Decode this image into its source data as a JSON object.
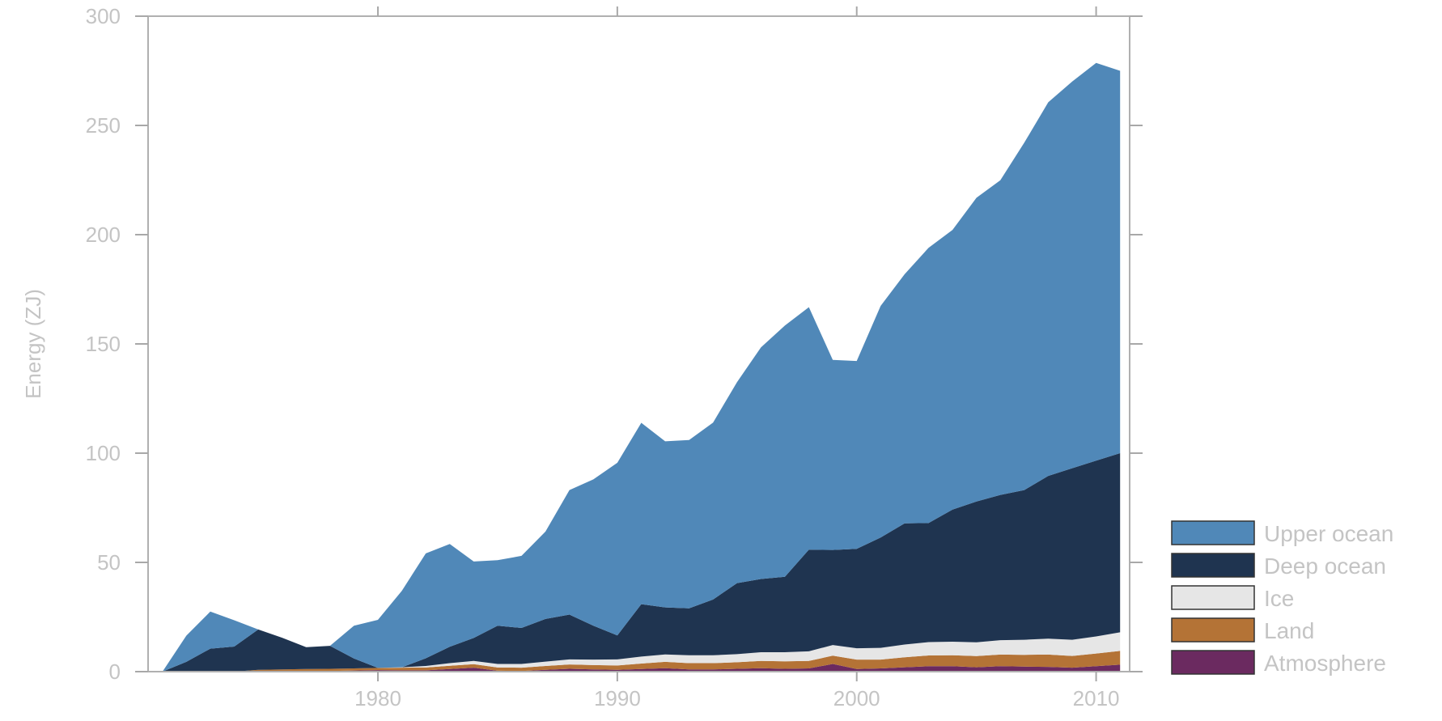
{
  "chart_data": {
    "type": "area",
    "stacked": true,
    "title": "",
    "xlabel": "",
    "ylabel": "Energy (ZJ)",
    "xlim": [
      1970.4,
      2011.4
    ],
    "ylim": [
      0,
      300
    ],
    "xticks": [
      1980,
      1990,
      2000,
      2010
    ],
    "yticks": [
      0,
      50,
      100,
      150,
      200,
      250,
      300
    ],
    "grid": false,
    "legend_position": "bottom-right",
    "x": [
      1971,
      1972,
      1973,
      1974,
      1975,
      1976,
      1977,
      1978,
      1979,
      1980,
      1981,
      1982,
      1983,
      1984,
      1985,
      1986,
      1987,
      1988,
      1989,
      1990,
      1991,
      1992,
      1993,
      1994,
      1995,
      1996,
      1997,
      1998,
      1999,
      2000,
      2001,
      2002,
      2003,
      2004,
      2005,
      2006,
      2007,
      2008,
      2009,
      2010,
      2011
    ],
    "series": [
      {
        "name": "Atmosphere",
        "color": "#6b2a60",
        "values": [
          0,
          0,
          0,
          0,
          0.2,
          0.3,
          0.3,
          0.3,
          0.5,
          0.7,
          0.6,
          0.6,
          1.2,
          1.8,
          0.4,
          0.3,
          0.8,
          1.3,
          1.0,
          0.8,
          1.2,
          1.6,
          1.0,
          1.0,
          1.3,
          1.6,
          1.3,
          1.5,
          3.5,
          1.2,
          1.5,
          2.0,
          2.5,
          2.5,
          2.0,
          2.5,
          2.3,
          2.2,
          1.8,
          2.5,
          3.2
        ]
      },
      {
        "name": "Land",
        "color": "#b47336",
        "values": [
          0,
          0,
          0,
          0,
          0.6,
          0.7,
          0.9,
          1.0,
          1.0,
          1.0,
          1.2,
          1.3,
          1.5,
          1.6,
          1.5,
          1.5,
          1.8,
          2.0,
          2.0,
          2.0,
          2.5,
          2.9,
          2.9,
          2.9,
          3.0,
          3.3,
          3.4,
          3.4,
          3.8,
          4.3,
          4.0,
          4.6,
          4.9,
          5.0,
          5.1,
          5.3,
          5.4,
          5.6,
          5.4,
          5.8,
          6.3
        ]
      },
      {
        "name": "Ice",
        "color": "#e6e6e6",
        "values": [
          0,
          0,
          0,
          0,
          0,
          0,
          0,
          0,
          0,
          0,
          0.2,
          0.7,
          1.2,
          1.5,
          1.6,
          1.7,
          2.0,
          2.3,
          2.5,
          2.8,
          3.2,
          3.4,
          3.6,
          3.6,
          3.7,
          4.0,
          4.2,
          4.4,
          4.9,
          5.2,
          5.4,
          5.8,
          6.1,
          6.2,
          6.3,
          6.6,
          6.9,
          7.3,
          7.4,
          7.8,
          8.5
        ]
      },
      {
        "name": "Deep ocean",
        "color": "#1f3450",
        "values": [
          0,
          4.5,
          10.5,
          11.5,
          18.5,
          14.5,
          10.0,
          10.5,
          4.5,
          0,
          0,
          3.5,
          7.5,
          10.5,
          17.5,
          16.5,
          19.5,
          20.5,
          15.5,
          11.0,
          24.0,
          21.5,
          21.5,
          25.5,
          32.5,
          33.5,
          34.5,
          46.5,
          43.5,
          45.5,
          50.5,
          55.5,
          54.5,
          60.5,
          64.5,
          66.5,
          68.5,
          74.5,
          78.5,
          80.5,
          82.0
        ]
      },
      {
        "name": "Upper ocean",
        "color": "#5088b8",
        "values": [
          0,
          12,
          17,
          12,
          0,
          0,
          0,
          0,
          15,
          22,
          35,
          48,
          47,
          35,
          30,
          33,
          40,
          57,
          67,
          79,
          83,
          76,
          77,
          81,
          92,
          106,
          115,
          111,
          87,
          86,
          106,
          114,
          126,
          128,
          139,
          144,
          159,
          171,
          177,
          182,
          175
        ]
      }
    ]
  }
}
